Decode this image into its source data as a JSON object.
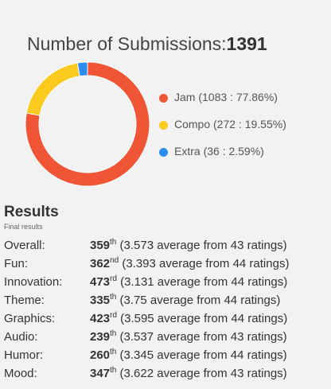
{
  "stats": {
    "title": "Number of Submissions:",
    "total": "1391"
  },
  "chart_data": {
    "type": "pie",
    "donut": true,
    "title": "Number of Submissions: 1391",
    "slices": [
      {
        "label": "Jam",
        "count": 1083,
        "percent": 77.86,
        "color": "#f05535",
        "legend_text": "Jam (1083 : 77.86%)"
      },
      {
        "label": "Compo",
        "count": 272,
        "percent": 19.55,
        "color": "#fbca1f",
        "legend_text": "Compo (272 : 19.55%)"
      },
      {
        "label": "Extra",
        "count": 36,
        "percent": 2.59,
        "color": "#2d8cf0",
        "legend_text": "Extra (36 : 2.59%)"
      }
    ],
    "legend_position": "right"
  },
  "results": {
    "title": "Results",
    "subtitle": "Final results",
    "rows": [
      {
        "category": "Overall:",
        "rank": "359",
        "suffix": "th",
        "detail": "(3.573 average from 43 ratings)"
      },
      {
        "category": "Fun:",
        "rank": "362",
        "suffix": "nd",
        "detail": "(3.393 average from 44 ratings)"
      },
      {
        "category": "Innovation:",
        "rank": "473",
        "suffix": "rd",
        "detail": "(3.131 average from 44 ratings)"
      },
      {
        "category": "Theme:",
        "rank": "335",
        "suffix": "th",
        "detail": "(3.75 average from 44 ratings)"
      },
      {
        "category": "Graphics:",
        "rank": "423",
        "suffix": "rd",
        "detail": "(3.595 average from 44 ratings)"
      },
      {
        "category": "Audio:",
        "rank": "239",
        "suffix": "th",
        "detail": "(3.537 average from 43 ratings)"
      },
      {
        "category": "Humor:",
        "rank": "260",
        "suffix": "th",
        "detail": "(3.345 average from 44 ratings)"
      },
      {
        "category": "Mood:",
        "rank": "347",
        "suffix": "th",
        "detail": "(3.622 average from 43 ratings)"
      }
    ]
  }
}
